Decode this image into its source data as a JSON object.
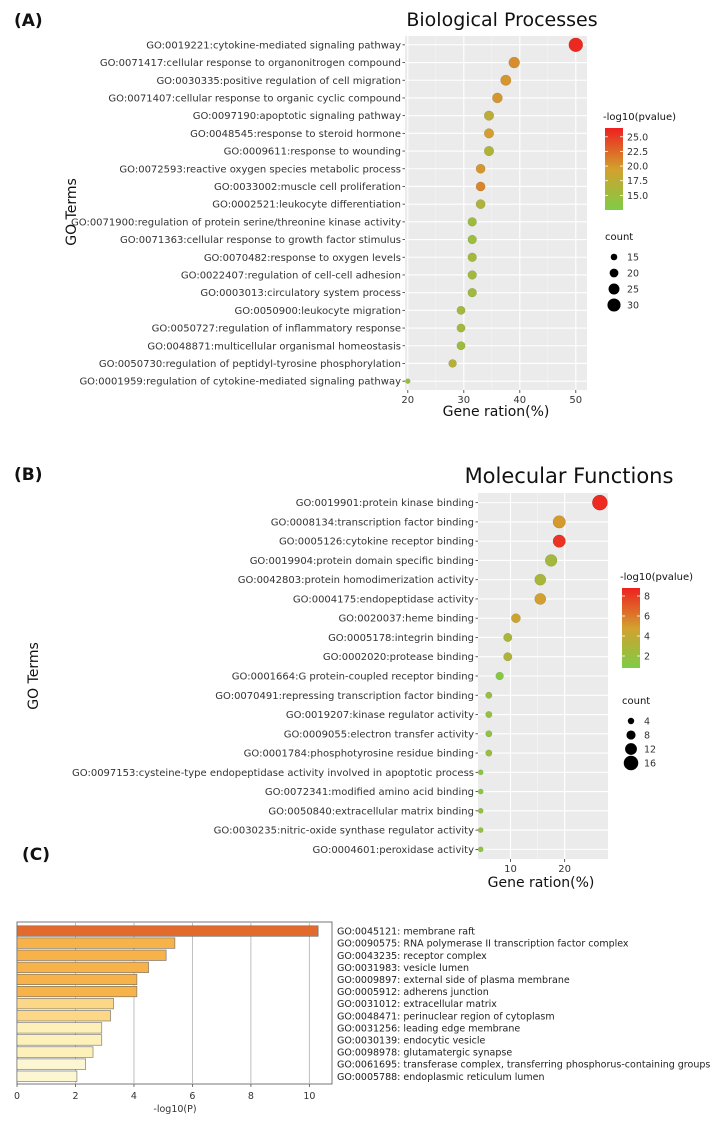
{
  "chart_data": [
    {
      "panel": "(A)",
      "type": "scatter",
      "title": "Biological Processes",
      "xlabel": "Gene ration(%)",
      "ylabel": "GO Terms",
      "xlim": [
        19.5,
        52
      ],
      "xticks": [
        20,
        30,
        40,
        50
      ],
      "grid": true,
      "color_scale": {
        "title": "-log10(pvalue)",
        "range": [
          12.5,
          26.5
        ],
        "ticks": [
          25.0,
          22.5,
          20.0,
          17.5,
          15.0
        ],
        "low_color": "#7fcc45",
        "mid_color": "#d3a02e",
        "high_color": "#ee2020",
        "tick_labels": [
          "25.0",
          "22.5",
          "20.0",
          "17.5",
          "15.0"
        ]
      },
      "size_scale": {
        "title": "count",
        "values": [
          15,
          20,
          25,
          30
        ],
        "min": 10,
        "max": 33
      },
      "legend_position": "right",
      "points": [
        {
          "term": "GO:0019221:cytokine-mediated signaling pathway",
          "x": 50,
          "count": 32,
          "logp": 26.0
        },
        {
          "term": "GO:0071417:cellular response to organonitrogen compound",
          "x": 39,
          "count": 25,
          "logp": 20.5
        },
        {
          "term": "GO:0030335:positive regulation of cell migration",
          "x": 37.5,
          "count": 24,
          "logp": 20.0
        },
        {
          "term": "GO:0071407:cellular response to organic cyclic compound",
          "x": 36,
          "count": 23,
          "logp": 20.0
        },
        {
          "term": "GO:0097190:apoptotic signaling pathway",
          "x": 34.5,
          "count": 22,
          "logp": 17.5
        },
        {
          "term": "GO:0048545:response to steroid hormone",
          "x": 34.5,
          "count": 22,
          "logp": 19.5
        },
        {
          "term": "GO:0009611:response to wounding",
          "x": 34.5,
          "count": 22,
          "logp": 16.5
        },
        {
          "term": "GO:0072593:reactive oxygen species metabolic process",
          "x": 33,
          "count": 21,
          "logp": 20.0
        },
        {
          "term": "GO:0033002:muscle cell proliferation",
          "x": 33,
          "count": 21,
          "logp": 21.0
        },
        {
          "term": "GO:0002521:leukocyte differentiation",
          "x": 33,
          "count": 21,
          "logp": 16.5
        },
        {
          "term": "GO:0071900:regulation of protein serine/threonine kinase activity",
          "x": 31.5,
          "count": 20,
          "logp": 15.0
        },
        {
          "term": "GO:0071363:cellular response to growth factor stimulus",
          "x": 31.5,
          "count": 20,
          "logp": 14.8
        },
        {
          "term": "GO:0070482:response to oxygen levels",
          "x": 31.5,
          "count": 20,
          "logp": 15.5
        },
        {
          "term": "GO:0022407:regulation of cell-cell adhesion",
          "x": 31.5,
          "count": 20,
          "logp": 15.3
        },
        {
          "term": "GO:0003013:circulatory system process",
          "x": 31.5,
          "count": 20,
          "logp": 15.3
        },
        {
          "term": "GO:0050900:leukocyte migration",
          "x": 29.5,
          "count": 19,
          "logp": 15.5
        },
        {
          "term": "GO:0050727:regulation of inflammatory response",
          "x": 29.5,
          "count": 19,
          "logp": 15.5
        },
        {
          "term": "GO:0048871:multicellular organismal homeostasis",
          "x": 29.5,
          "count": 19,
          "logp": 15.0
        },
        {
          "term": "GO:0050730:regulation of peptidyl-tyrosine phosphorylation",
          "x": 28,
          "count": 18,
          "logp": 17.0
        },
        {
          "term": "GO:0001959:regulation of cytokine-mediated signaling pathway",
          "x": 20,
          "count": 11,
          "logp": 14.5
        }
      ]
    },
    {
      "panel": "(B)",
      "type": "scatter",
      "title": "Molecular Functions",
      "xlabel": "Gene ration(%)",
      "ylabel": "GO Terms",
      "xlim": [
        4,
        28
      ],
      "xticks": [
        10,
        20
      ],
      "grid": true,
      "color_scale": {
        "title": "-log10(pvalue)",
        "range": [
          0.8,
          8.8
        ],
        "ticks": [
          8,
          6,
          4,
          2
        ],
        "low_color": "#7fcc45",
        "mid_color": "#d3a02e",
        "high_color": "#ee2020"
      },
      "size_scale": {
        "title": "count",
        "values": [
          4,
          8,
          12,
          16
        ],
        "min": 1,
        "max": 17
      },
      "legend_position": "right",
      "points": [
        {
          "term": "GO:0019901:protein kinase binding",
          "x": 26.5,
          "count": 17,
          "logp": 8.5
        },
        {
          "term": "GO:0008134:transcription factor binding",
          "x": 19,
          "count": 13,
          "logp": 5.0
        },
        {
          "term": "GO:0005126:cytokine receptor binding",
          "x": 19,
          "count": 13,
          "logp": 8.2
        },
        {
          "term": "GO:0019904:protein domain specific binding",
          "x": 17.5,
          "count": 12,
          "logp": 2.5
        },
        {
          "term": "GO:0042803:protein homodimerization activity",
          "x": 15.5,
          "count": 11,
          "logp": 2.8
        },
        {
          "term": "GO:0004175:endopeptidase activity",
          "x": 15.5,
          "count": 11,
          "logp": 4.8
        },
        {
          "term": "GO:0020037:heme binding",
          "x": 11,
          "count": 8,
          "logp": 4.5
        },
        {
          "term": "GO:0005178:integrin binding",
          "x": 9.5,
          "count": 7,
          "logp": 2.8
        },
        {
          "term": "GO:0002020:protease binding",
          "x": 9.5,
          "count": 7,
          "logp": 3.0
        },
        {
          "term": "GO:0001664:G protein-coupled receptor binding",
          "x": 8,
          "count": 6,
          "logp": 1.2
        },
        {
          "term": "GO:0070491:repressing transcription factor binding",
          "x": 6,
          "count": 4,
          "logp": 2.0
        },
        {
          "term": "GO:0019207:kinase regulator activity",
          "x": 6,
          "count": 4,
          "logp": 1.8
        },
        {
          "term": "GO:0009055:electron transfer activity",
          "x": 6,
          "count": 4,
          "logp": 1.6
        },
        {
          "term": "GO:0001784:phosphotyrosine residue binding",
          "x": 6,
          "count": 4,
          "logp": 2.2
        },
        {
          "term": "GO:0097153:cysteine-type endopeptidase activity involved in apoptotic process",
          "x": 4.5,
          "count": 2,
          "logp": 1.4
        },
        {
          "term": "GO:0072341:modified amino acid binding",
          "x": 4.5,
          "count": 2,
          "logp": 1.3
        },
        {
          "term": "GO:0050840:extracellular matrix binding",
          "x": 4.5,
          "count": 2,
          "logp": 1.6
        },
        {
          "term": "GO:0030235:nitric-oxide synthase regulator activity",
          "x": 4.5,
          "count": 2,
          "logp": 1.8
        },
        {
          "term": "GO:0004601:peroxidase activity",
          "x": 4.5,
          "count": 2,
          "logp": 1.5
        }
      ]
    },
    {
      "panel": "(C)",
      "type": "bar",
      "orientation": "horizontal",
      "xlabel": "-log10(P)",
      "xlim": [
        0,
        10.5
      ],
      "xticks": [
        0,
        2,
        4,
        6,
        8,
        10
      ],
      "grid": true,
      "categories": [
        "GO:0045121: membrane raft",
        "GO:0090575: RNA polymerase II transcription factor complex",
        "GO:0043235: receptor complex",
        "GO:0031983: vesicle lumen",
        "GO:0009897: external side of plasma membrane",
        "GO:0005912: adherens junction",
        "GO:0031012: extracellular matrix",
        "GO:0048471: perinuclear region of cytoplasm",
        "GO:0031256: leading edge membrane",
        "GO:0030139: endocytic vesicle",
        "GO:0098978: glutamatergic synapse",
        "GO:0061695: transferase complex, transferring phosphorus-containing groups",
        "GO:0005788: endoplasmic reticulum lumen"
      ],
      "values": [
        10.3,
        5.4,
        5.1,
        4.5,
        4.1,
        4.1,
        3.3,
        3.2,
        2.9,
        2.9,
        2.6,
        2.35,
        2.05
      ],
      "colors": [
        "#e26a2c",
        "#f7b24a",
        "#f7b24a",
        "#f7b24a",
        "#f7b24a",
        "#f7b24a",
        "#fbd787",
        "#fbd787",
        "#fdf0b8",
        "#fdf0b8",
        "#fdf0b8",
        "#fdf6d2",
        "#fdf6d2"
      ]
    }
  ]
}
